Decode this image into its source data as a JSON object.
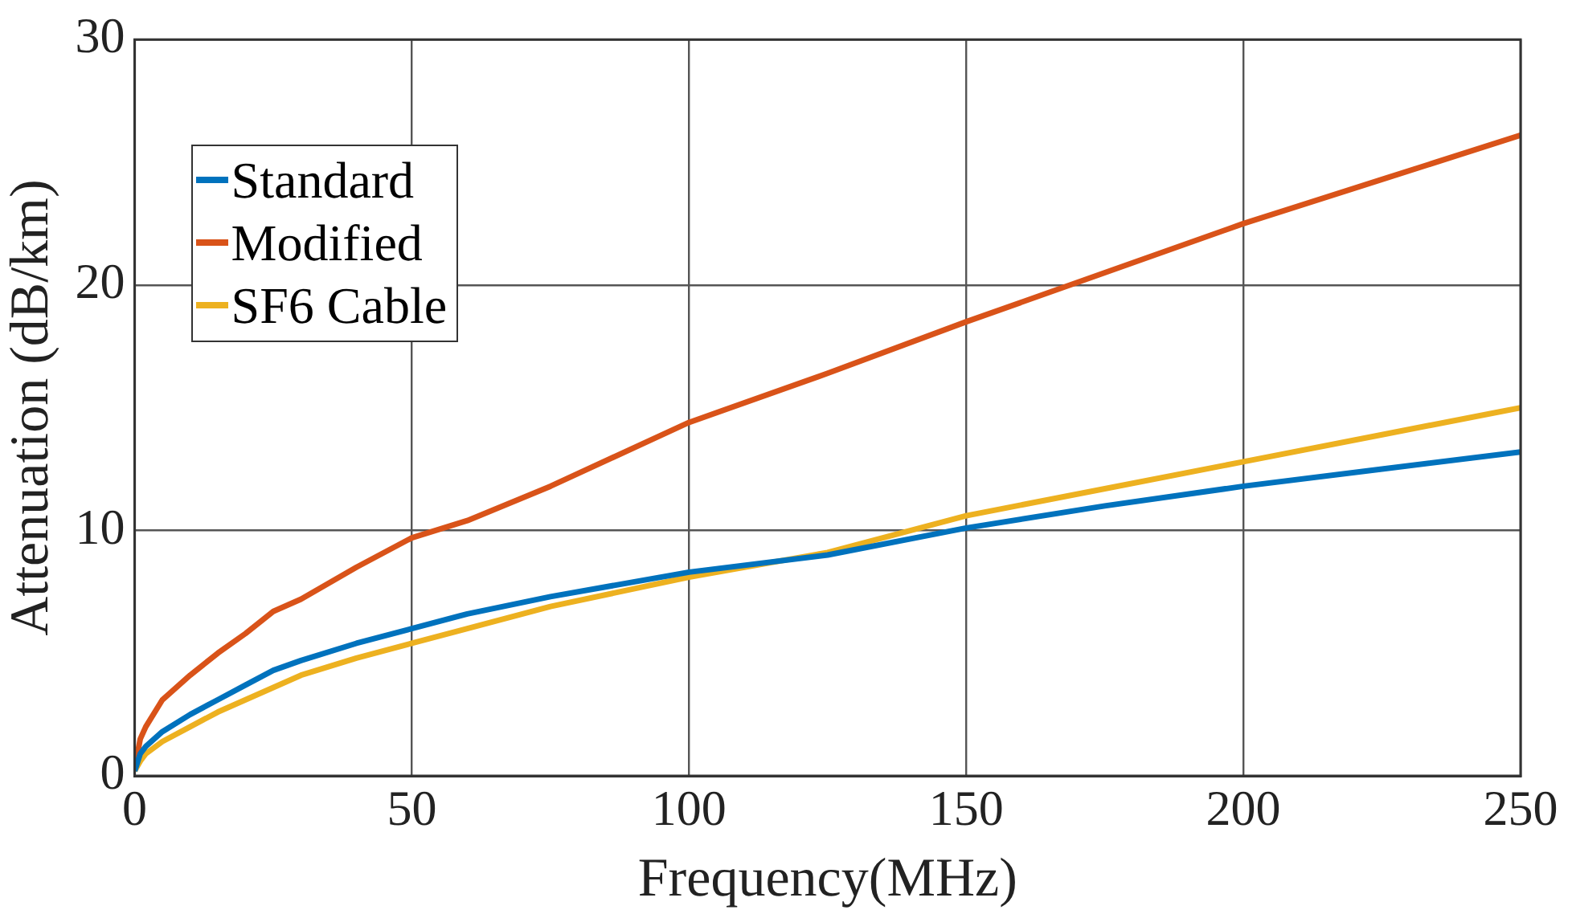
{
  "chart_data": {
    "type": "line",
    "xlabel": "Frequency(MHz)",
    "ylabel": "Attenuation (dB/km)",
    "x": [
      0,
      1,
      2,
      5,
      10,
      15,
      20,
      25,
      30,
      40,
      50,
      60,
      75,
      100,
      125,
      150,
      175,
      200,
      225,
      250
    ],
    "series": [
      {
        "name": "Standard",
        "color": "#0072bd",
        "values": [
          0.2,
          0.9,
          1.2,
          1.8,
          2.5,
          3.1,
          3.7,
          4.3,
          4.7,
          5.4,
          6.0,
          6.6,
          7.3,
          8.3,
          9.0,
          10.1,
          11.0,
          11.8,
          12.5,
          13.2
        ]
      },
      {
        "name": "Modified",
        "color": "#d95319",
        "values": [
          0.3,
          1.5,
          2.0,
          3.1,
          4.1,
          5.0,
          5.8,
          6.7,
          7.2,
          8.5,
          9.7,
          10.4,
          11.8,
          14.4,
          16.4,
          18.5,
          20.5,
          22.5,
          24.3,
          26.1
        ]
      },
      {
        "name": "SF6 Cable",
        "color": "#edb120",
        "values": [
          0.2,
          0.6,
          0.9,
          1.4,
          2.0,
          2.6,
          3.1,
          3.6,
          4.1,
          4.8,
          5.4,
          6.0,
          6.9,
          8.1,
          9.1,
          10.6,
          11.7,
          12.8,
          13.9,
          15.0
        ]
      }
    ],
    "xlim": [
      0,
      250
    ],
    "xticks": [
      0,
      50,
      100,
      150,
      200,
      250
    ],
    "ylim": [
      0,
      30
    ],
    "yticks": [
      0,
      10,
      20,
      30
    ],
    "grid": true,
    "legend": "top left",
    "marker": "none",
    "line_style": "solid"
  }
}
